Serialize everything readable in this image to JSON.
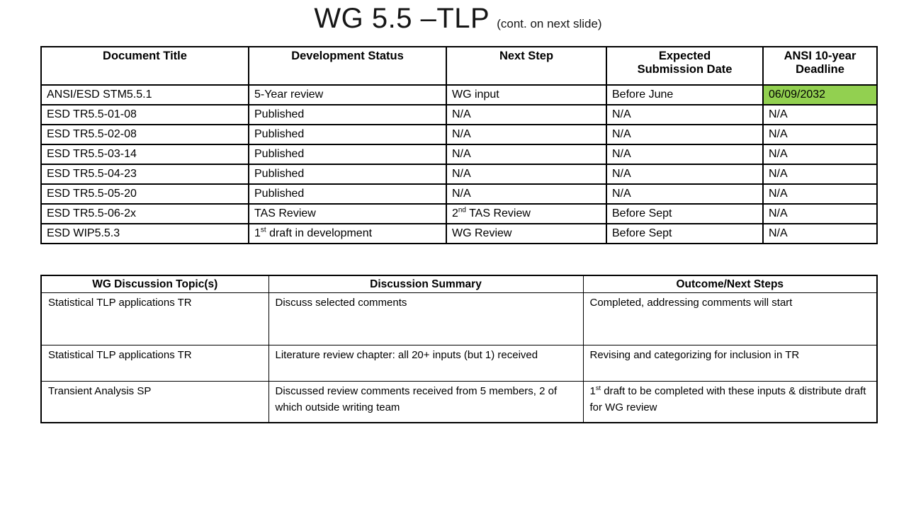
{
  "slide": {
    "title": "WG 5.5 –TLP",
    "title_suffix": "(cont. on next slide)"
  },
  "colors": {
    "deadline_highlight": "#92D050",
    "border": "#000000",
    "background": "#FFFFFF"
  },
  "documents_table": {
    "headers": {
      "document_title": "Document Title",
      "development_status": "Development Status",
      "next_step": "Next Step",
      "expected_submission": "Expected\nSubmission Date",
      "ansi_deadline": "ANSI 10-year\nDeadline"
    },
    "rows": [
      {
        "document_title": "ANSI/ESD STM5.5.1",
        "development_status": "5-Year review",
        "next_step": "WG input",
        "expected_submission": "Before June",
        "ansi_deadline": "06/09/2032",
        "deadline_highlighted": true
      },
      {
        "document_title": "ESD TR5.5-01-08",
        "development_status": "Published",
        "next_step": "N/A",
        "expected_submission": "N/A",
        "ansi_deadline": "N/A",
        "deadline_highlighted": false
      },
      {
        "document_title": "ESD TR5.5-02-08",
        "development_status": "Published",
        "next_step": "N/A",
        "expected_submission": "N/A",
        "ansi_deadline": "N/A",
        "deadline_highlighted": false
      },
      {
        "document_title": "ESD TR5.5-03-14",
        "development_status": "Published",
        "next_step": "N/A",
        "expected_submission": "N/A",
        "ansi_deadline": "N/A",
        "deadline_highlighted": false
      },
      {
        "document_title": "ESD TR5.5-04-23",
        "development_status": "Published",
        "next_step": "N/A",
        "expected_submission": "N/A",
        "ansi_deadline": "N/A",
        "deadline_highlighted": false
      },
      {
        "document_title": "ESD TR5.5-05-20",
        "development_status": "Published",
        "next_step": "N/A",
        "expected_submission": "N/A",
        "ansi_deadline": "N/A",
        "deadline_highlighted": false
      },
      {
        "document_title": "ESD TR5.5-06-2x",
        "development_status": "TAS Review",
        "next_step": "2^{nd} TAS Review",
        "expected_submission": "Before Sept",
        "ansi_deadline": "N/A",
        "deadline_highlighted": false
      },
      {
        "document_title": "ESD WIP5.5.3",
        "development_status": "1^{st} draft in development",
        "next_step": "WG Review",
        "expected_submission": "Before Sept",
        "ansi_deadline": "N/A",
        "deadline_highlighted": false
      }
    ]
  },
  "discussion_table": {
    "headers": {
      "topic": "WG Discussion Topic(s)",
      "summary": "Discussion Summary",
      "outcome": "Outcome/Next Steps"
    },
    "rows": [
      {
        "topic": "Statistical TLP applications TR",
        "summary": "Discuss selected comments",
        "outcome": "Completed, addressing comments will start"
      },
      {
        "topic": "Statistical TLP applications TR",
        "summary": "Literature review  chapter: all 20+ inputs (but 1) received",
        "outcome": "Revising and categorizing for inclusion in TR"
      },
      {
        "topic": "Transient Analysis SP",
        "summary": "Discussed review comments received from 5 members, 2 of which outside writing team",
        "outcome": "1^{st} draft to be completed with these inputs & distribute draft for WG review"
      }
    ]
  }
}
